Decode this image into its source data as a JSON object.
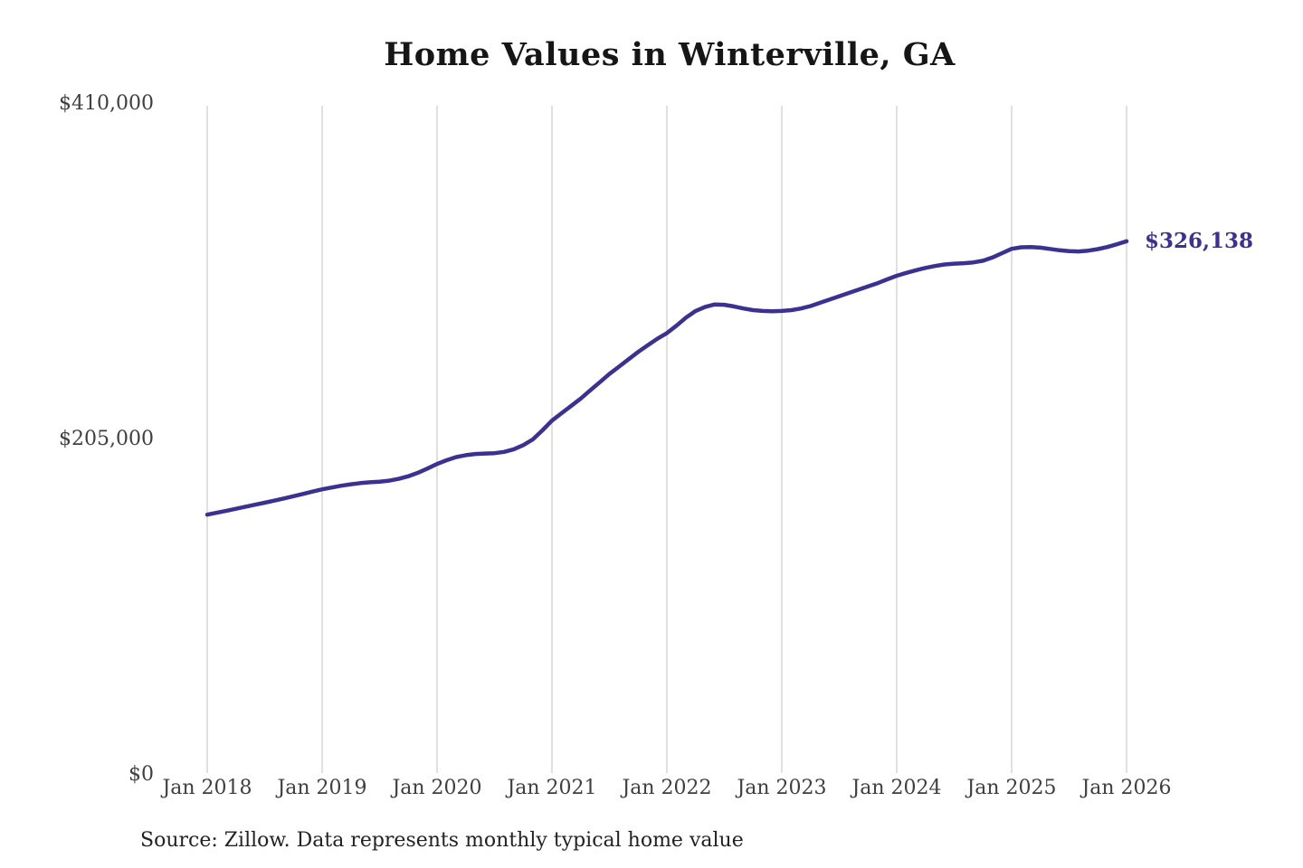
{
  "page": {
    "title": "Home Values in Winterville, GA",
    "source_note": "Source: Zillow. Data represents monthly typical home value"
  },
  "colors": {
    "line": "#3a3193",
    "gridline": "#cccccc",
    "axis_text": "#3f3f3f",
    "title_text": "#161616",
    "end_label_text": "#3a3193"
  },
  "chart_data": {
    "type": "line",
    "title": "Home Values in Winterville, GA",
    "xlabel": "",
    "ylabel": "",
    "x_tick_labels": [
      "Jan 2018",
      "Jan 2019",
      "Jan 2020",
      "Jan 2021",
      "Jan 2022",
      "Jan 2023",
      "Jan 2024",
      "Jan 2025",
      "Jan 2026"
    ],
    "y_tick_labels": [
      "$0",
      "$205,000",
      "$410,000"
    ],
    "y_tick_values": [
      0,
      205000,
      410000
    ],
    "ylim": [
      0,
      410000
    ],
    "grid": "vertical-only",
    "legend_position": "none",
    "frequency": "monthly",
    "x_start": "Jan 2018",
    "x_end": "Jan 2026",
    "end_value": 326138,
    "end_value_label": "$326,138",
    "series": [
      {
        "name": "Typical home value",
        "values": [
          159000,
          160200,
          161400,
          162600,
          163900,
          165100,
          166300,
          167600,
          168900,
          170300,
          171700,
          173100,
          174500,
          175600,
          176700,
          177600,
          178300,
          178800,
          179200,
          179800,
          180900,
          182500,
          184600,
          187200,
          190000,
          192300,
          194200,
          195400,
          196100,
          196400,
          196600,
          197400,
          199000,
          201500,
          205000,
          210500,
          216500,
          221000,
          225500,
          230000,
          235000,
          240000,
          245000,
          249500,
          254000,
          258500,
          262500,
          266500,
          270000,
          274500,
          279500,
          283500,
          286000,
          287500,
          287300,
          286300,
          285000,
          284000,
          283500,
          283300,
          283500,
          284000,
          285000,
          286500,
          288500,
          290500,
          292500,
          294500,
          296500,
          298500,
          300500,
          302800,
          305000,
          306800,
          308400,
          309800,
          311000,
          311900,
          312400,
          312700,
          313200,
          314200,
          316200,
          318800,
          321500,
          322400,
          322600,
          322200,
          321400,
          320600,
          320100,
          319900,
          320400,
          321300,
          322600,
          324300,
          326138
        ]
      }
    ]
  }
}
